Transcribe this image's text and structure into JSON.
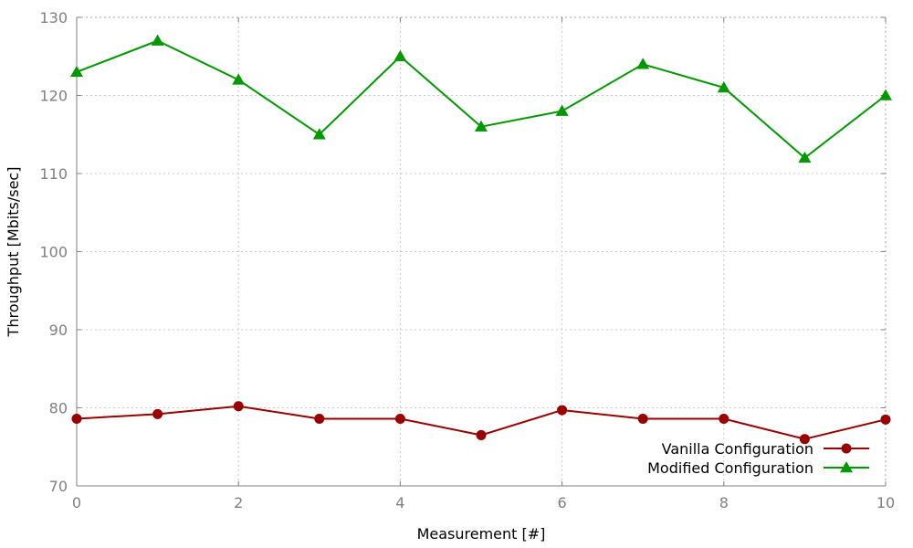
{
  "chart_data": {
    "type": "line",
    "title": "",
    "xlabel": "Measurement [#]",
    "ylabel": "Throughput [Mbits/sec]",
    "xlim": [
      0,
      10
    ],
    "ylim": [
      70,
      130
    ],
    "x_ticks": [
      0,
      2,
      4,
      6,
      8,
      10
    ],
    "y_ticks": [
      70,
      80,
      90,
      100,
      110,
      120,
      130
    ],
    "grid": true,
    "legend_position": "bottom-right",
    "x": [
      0,
      1,
      2,
      3,
      4,
      5,
      6,
      7,
      8,
      9,
      10
    ],
    "series": [
      {
        "name": "Vanilla Configuration",
        "color": "#990000",
        "marker": "circle",
        "values": [
          78.6,
          79.2,
          80.2,
          78.6,
          78.6,
          76.5,
          79.7,
          78.6,
          78.6,
          76.0,
          78.5
        ]
      },
      {
        "name": "Modified Configuration",
        "color": "#009900",
        "marker": "triangle",
        "values": [
          123,
          127,
          122,
          115,
          125,
          116,
          118,
          124,
          121,
          112,
          120
        ]
      }
    ]
  }
}
